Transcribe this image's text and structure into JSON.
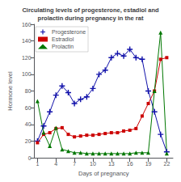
{
  "chart_data": {
    "type": "line",
    "title": "Circulating levels of progesterone, estadiol and\nprolactin during pregnancy in the rat",
    "xlabel": "Days of pregnancy",
    "ylabel": "Hormone level",
    "xlim": [
      0.5,
      23
    ],
    "ylim": [
      0,
      160
    ],
    "xticks": [
      1,
      4,
      7,
      10,
      13,
      16,
      19,
      22
    ],
    "yticks": [
      0,
      20,
      40,
      60,
      80,
      100,
      120,
      140,
      160
    ],
    "grid": false,
    "legend": "upper left",
    "series": [
      {
        "name": "Progesterone",
        "color": "#1111AA",
        "marker": "plus",
        "x": [
          1,
          2,
          3,
          4,
          5,
          6,
          7,
          8,
          9,
          10,
          11,
          12,
          13,
          14,
          15,
          16,
          17,
          18,
          19,
          20,
          21,
          22
        ],
        "values": [
          20,
          38,
          55,
          75,
          86,
          78,
          65,
          70,
          73,
          83,
          100,
          105,
          120,
          125,
          122,
          130,
          120,
          118,
          80,
          55,
          28,
          7
        ]
      },
      {
        "name": "Estradiol",
        "color": "#CC0000",
        "marker": "square",
        "x": [
          1,
          2,
          3,
          4,
          5,
          6,
          7,
          8,
          9,
          10,
          11,
          12,
          13,
          14,
          15,
          16,
          17,
          18,
          19,
          20,
          21,
          22
        ],
        "values": [
          18,
          28,
          30,
          35,
          36,
          28,
          25,
          26,
          27,
          27,
          28,
          29,
          30,
          30,
          32,
          33,
          35,
          50,
          65,
          80,
          118,
          120
        ]
      },
      {
        "name": "Prolactin",
        "color": "#007700",
        "marker": "triangle",
        "x": [
          1,
          2,
          3,
          4,
          5,
          6,
          7,
          8,
          9,
          10,
          11,
          12,
          13,
          14,
          15,
          16,
          17,
          18,
          19,
          20,
          21,
          22
        ],
        "values": [
          68,
          30,
          14,
          36,
          10,
          8,
          6,
          6,
          5,
          5,
          5,
          5,
          5,
          5,
          5,
          5,
          6,
          6,
          6,
          80,
          150,
          5
        ]
      }
    ]
  }
}
